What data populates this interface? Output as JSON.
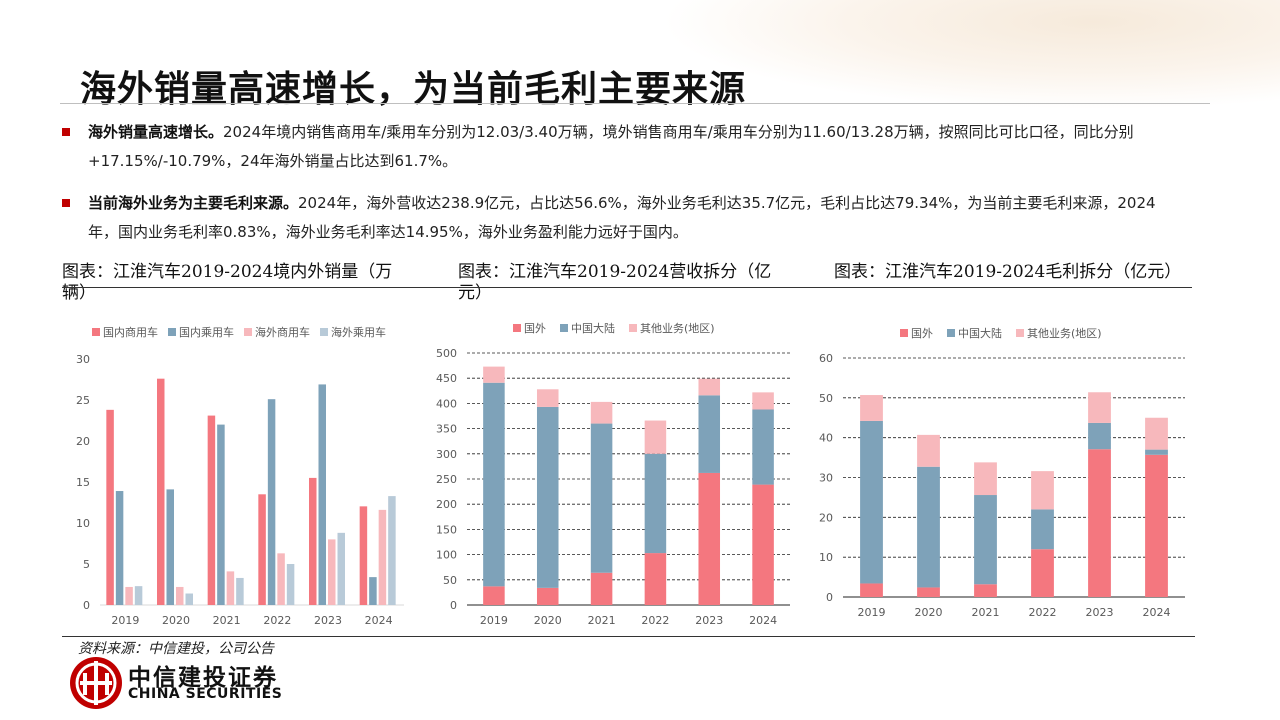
{
  "header": {
    "title": "海外销量高速增长，为当前毛利主要来源"
  },
  "bullets": [
    {
      "bold": "海外销量高速增长。",
      "line1": "2024年境内销售商用车/乘用车分别为12.03/3.40万辆，境外销售商用车/乘用车分别为11.60/13.28万辆，按照同比可比口径，同比分别",
      "line2": "+17.15%/-10.79%，24年海外销量占比达到61.7%。"
    },
    {
      "bold": "当前海外业务为主要毛利来源。",
      "line1": "2024年，海外营收达238.9亿元，占比达56.6%，海外业务毛利达35.7亿元，毛利占比达79.34%，为当前主要毛利来源，2024",
      "line2": "年，国内业务毛利率0.83%，海外业务毛利率达14.95%，海外业务盈利能力远好于国内。"
    }
  ],
  "chart_titles": [
    {
      "line1": "图表：江淮汽车2019-2024境内外销量（万",
      "line2": "辆）"
    },
    {
      "line1": "图表：江淮汽车2019-2024营收拆分（亿",
      "line2": "元）"
    },
    {
      "line1": "图表：江淮汽车2019-2024毛利拆分（亿元）",
      "line2": ""
    }
  ],
  "footer": {
    "source": "资料来源：中信建投，公司公告",
    "brand_cn": "中信建投证券",
    "brand_en": "CHINA SECURITIES"
  },
  "colors": {
    "red": "#f4777f",
    "blue": "#7ea2b9",
    "pink": "#f7b8bc",
    "lightblue": "#b8cad8",
    "accent": "#c00000"
  },
  "chart_data": [
    {
      "type": "bar",
      "title": "江淮汽车2019-2024境内外销量（万辆）",
      "categories": [
        "2019",
        "2020",
        "2021",
        "2022",
        "2023",
        "2024"
      ],
      "series": [
        {
          "name": "国内商用车",
          "values": [
            23.8,
            27.6,
            23.1,
            13.5,
            15.5,
            12.03
          ]
        },
        {
          "name": "国内乘用车",
          "values": [
            13.9,
            14.1,
            22.0,
            25.1,
            26.9,
            3.4
          ]
        },
        {
          "name": "海外商用车",
          "values": [
            2.2,
            2.2,
            4.1,
            6.3,
            8.0,
            11.6
          ]
        },
        {
          "name": "海外乘用车",
          "values": [
            2.3,
            1.4,
            3.3,
            5.0,
            8.8,
            13.28
          ]
        }
      ],
      "ylim": [
        0,
        30
      ],
      "yticks": [
        0,
        5,
        10,
        15,
        20,
        25,
        30
      ],
      "legend": "top",
      "grid": false
    },
    {
      "type": "stacked-bar",
      "title": "江淮汽车2019-2024营收拆分（亿元）",
      "categories": [
        "2019",
        "2020",
        "2021",
        "2022",
        "2023",
        "2024"
      ],
      "series": [
        {
          "name": "国外",
          "values": [
            37,
            34,
            64,
            103,
            262,
            238.9
          ]
        },
        {
          "name": "中国大陆",
          "values": [
            404,
            359,
            296,
            197,
            154,
            149
          ]
        },
        {
          "name": "其他业务(地区)",
          "values": [
            32,
            35,
            43,
            66,
            33,
            34
          ]
        }
      ],
      "ylim": [
        0,
        500
      ],
      "yticks": [
        0,
        50,
        100,
        150,
        200,
        250,
        300,
        350,
        400,
        450,
        500
      ],
      "legend": "top",
      "grid": true
    },
    {
      "type": "stacked-bar",
      "title": "江淮汽车2019-2024毛利拆分（亿元）",
      "categories": [
        "2019",
        "2020",
        "2021",
        "2022",
        "2023",
        "2024"
      ],
      "series": [
        {
          "name": "国外",
          "values": [
            3.4,
            2.4,
            3.2,
            12.0,
            37.1,
            35.7
          ]
        },
        {
          "name": "中国大陆",
          "values": [
            40.8,
            30.3,
            22.4,
            10.0,
            6.6,
            1.3
          ]
        },
        {
          "name": "其他业务(地区)",
          "values": [
            6.5,
            8.0,
            8.2,
            9.6,
            7.7,
            8.0
          ]
        }
      ],
      "ylim": [
        0,
        60
      ],
      "yticks": [
        0,
        10,
        20,
        30,
        40,
        50,
        60
      ],
      "legend": "top",
      "grid": true
    }
  ]
}
